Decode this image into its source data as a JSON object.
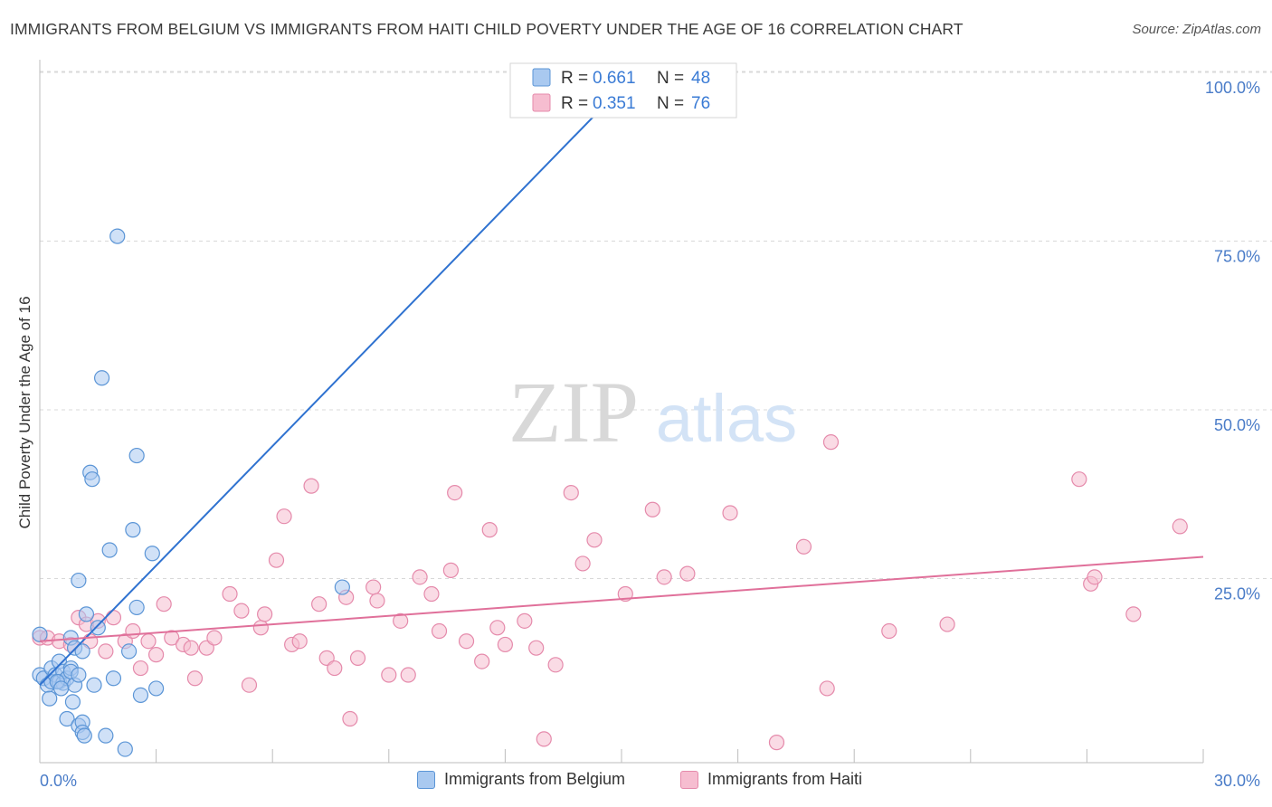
{
  "header": {
    "title": "IMMIGRANTS FROM BELGIUM VS IMMIGRANTS FROM HAITI CHILD POVERTY UNDER THE AGE OF 16 CORRELATION CHART",
    "source": "Source: ZipAtlas.com"
  },
  "watermark": {
    "zip": "ZIP",
    "atlas": "atlas"
  },
  "colors": {
    "belgium_fill": "#a9c9f0",
    "belgium_stroke": "#5b95d6",
    "belgium_line": "#2f72d0",
    "haiti_fill": "#f6bdd0",
    "haiti_stroke": "#e58aab",
    "haiti_line": "#e0709a",
    "axis_label": "#4a7cc8",
    "grid": "#d9d9d9"
  },
  "legend_top": [
    {
      "r_label": "R =",
      "r_value": "0.661",
      "n_label": "N =",
      "n_value": "48"
    },
    {
      "r_label": "R =",
      "r_value": "0.351",
      "n_label": "N =",
      "n_value": "76"
    }
  ],
  "legend_bottom": [
    {
      "label": "Immigrants from Belgium"
    },
    {
      "label": "Immigrants from Haiti"
    }
  ],
  "chart_data": {
    "type": "scatter",
    "title": "IMMIGRANTS FROM BELGIUM VS IMMIGRANTS FROM HAITI CHILD POVERTY UNDER THE AGE OF 16 CORRELATION CHART",
    "xlabel": "",
    "ylabel": "Child Poverty Under the Age of 16",
    "xlim": [
      0,
      30
    ],
    "ylim": [
      0,
      100
    ],
    "x_tick_labels": [
      "0.0%",
      "30.0%"
    ],
    "y_ticks": [
      25,
      50,
      75,
      100
    ],
    "y_tick_labels": [
      "25.0%",
      "50.0%",
      "75.0%",
      "100.0%"
    ],
    "grid": true,
    "legend_position": "top-center",
    "series": [
      {
        "name": "Immigrants from Belgium",
        "R": 0.661,
        "N": 48,
        "trendline": {
          "x": [
            0.0,
            15.0
          ],
          "y": [
            11.5,
            100.0
          ]
        },
        "points": [
          [
            0.0,
            19.0
          ],
          [
            0.0,
            13.0
          ],
          [
            0.1,
            12.5
          ],
          [
            0.2,
            11.5
          ],
          [
            0.3,
            14.0
          ],
          [
            0.3,
            12.0
          ],
          [
            0.4,
            13.0
          ],
          [
            0.5,
            15.0
          ],
          [
            0.5,
            12.0
          ],
          [
            0.6,
            11.8
          ],
          [
            0.6,
            13.5
          ],
          [
            0.7,
            12.5
          ],
          [
            0.7,
            6.5
          ],
          [
            0.8,
            14.0
          ],
          [
            0.8,
            18.5
          ],
          [
            0.8,
            13.5
          ],
          [
            0.9,
            11.5
          ],
          [
            0.9,
            17.0
          ],
          [
            1.0,
            13.0
          ],
          [
            1.0,
            5.5
          ],
          [
            1.1,
            6.0
          ],
          [
            1.1,
            4.5
          ],
          [
            1.0,
            27.0
          ],
          [
            1.1,
            16.5
          ],
          [
            1.2,
            22.0
          ],
          [
            1.3,
            43.0
          ],
          [
            1.35,
            42.0
          ],
          [
            1.4,
            11.5
          ],
          [
            1.5,
            20.0
          ],
          [
            1.6,
            57.0
          ],
          [
            1.7,
            4.0
          ],
          [
            1.8,
            31.5
          ],
          [
            1.9,
            12.5
          ],
          [
            2.0,
            78.0
          ],
          [
            2.2,
            2.0
          ],
          [
            2.3,
            16.5
          ],
          [
            2.4,
            34.5
          ],
          [
            2.5,
            23.0
          ],
          [
            2.5,
            45.5
          ],
          [
            2.6,
            10.0
          ],
          [
            2.9,
            31.0
          ],
          [
            3.0,
            11.0
          ],
          [
            0.25,
            9.5
          ],
          [
            0.45,
            12.0
          ],
          [
            0.55,
            11.0
          ],
          [
            0.85,
            9.0
          ],
          [
            1.15,
            4.0
          ],
          [
            7.8,
            26.0
          ]
        ]
      },
      {
        "name": "Immigrants from Haiti",
        "R": 0.351,
        "N": 76,
        "trendline": {
          "x": [
            0.0,
            30.0
          ],
          "y": [
            18.0,
            30.5
          ]
        },
        "points": [
          [
            0.0,
            18.5
          ],
          [
            0.2,
            18.5
          ],
          [
            0.5,
            18.0
          ],
          [
            0.8,
            17.5
          ],
          [
            1.0,
            21.5
          ],
          [
            1.2,
            20.5
          ],
          [
            1.3,
            18.0
          ],
          [
            1.5,
            21.0
          ],
          [
            1.7,
            16.5
          ],
          [
            1.9,
            21.5
          ],
          [
            2.2,
            18.0
          ],
          [
            2.4,
            19.5
          ],
          [
            2.6,
            14.0
          ],
          [
            2.8,
            18.0
          ],
          [
            3.0,
            16.0
          ],
          [
            3.2,
            23.5
          ],
          [
            3.4,
            18.5
          ],
          [
            3.7,
            17.5
          ],
          [
            3.9,
            17.0
          ],
          [
            4.0,
            12.5
          ],
          [
            4.3,
            17.0
          ],
          [
            4.5,
            18.5
          ],
          [
            4.9,
            25.0
          ],
          [
            5.2,
            22.5
          ],
          [
            5.4,
            11.5
          ],
          [
            5.7,
            20.0
          ],
          [
            5.8,
            22.0
          ],
          [
            6.1,
            30.0
          ],
          [
            6.3,
            36.5
          ],
          [
            6.5,
            17.5
          ],
          [
            6.7,
            18.0
          ],
          [
            7.0,
            41.0
          ],
          [
            7.2,
            23.5
          ],
          [
            7.4,
            15.5
          ],
          [
            7.6,
            14.0
          ],
          [
            7.9,
            24.5
          ],
          [
            8.0,
            6.5
          ],
          [
            8.2,
            15.5
          ],
          [
            8.6,
            26.0
          ],
          [
            8.7,
            24.0
          ],
          [
            9.0,
            13.0
          ],
          [
            9.3,
            21.0
          ],
          [
            9.5,
            13.0
          ],
          [
            9.8,
            27.5
          ],
          [
            10.1,
            25.0
          ],
          [
            10.3,
            19.5
          ],
          [
            10.6,
            28.5
          ],
          [
            10.7,
            40.0
          ],
          [
            11.0,
            18.0
          ],
          [
            11.4,
            15.0
          ],
          [
            11.6,
            34.5
          ],
          [
            11.8,
            20.0
          ],
          [
            12.0,
            17.5
          ],
          [
            12.5,
            21.0
          ],
          [
            12.8,
            17.0
          ],
          [
            13.0,
            3.5
          ],
          [
            13.3,
            14.5
          ],
          [
            13.7,
            40.0
          ],
          [
            14.0,
            29.5
          ],
          [
            14.3,
            33.0
          ],
          [
            15.1,
            25.0
          ],
          [
            15.8,
            37.5
          ],
          [
            16.1,
            27.5
          ],
          [
            16.7,
            28.0
          ],
          [
            17.8,
            37.0
          ],
          [
            19.0,
            3.0
          ],
          [
            19.7,
            32.0
          ],
          [
            20.3,
            11.0
          ],
          [
            20.4,
            47.5
          ],
          [
            21.9,
            19.5
          ],
          [
            23.4,
            20.5
          ],
          [
            26.8,
            42.0
          ],
          [
            27.1,
            26.5
          ],
          [
            27.2,
            27.5
          ],
          [
            28.2,
            22.0
          ],
          [
            29.4,
            35.0
          ]
        ]
      }
    ]
  }
}
